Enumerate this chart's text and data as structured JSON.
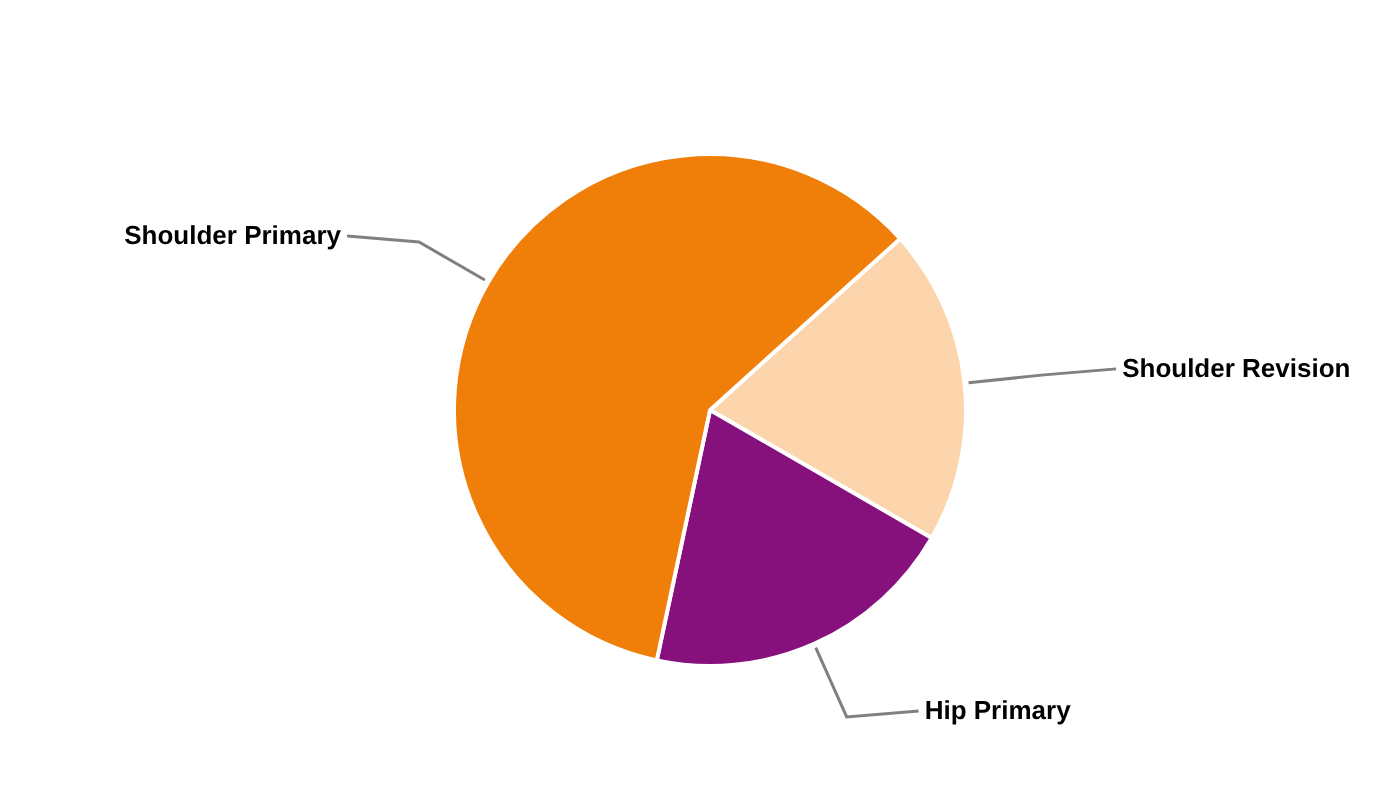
{
  "chart_data": {
    "type": "pie",
    "categories": [
      "Shoulder Revision",
      "Hip Primary",
      "Shoulder Primary"
    ],
    "values": [
      20,
      20,
      60
    ],
    "colors": [
      "#fcd5ac",
      "#86107c",
      "#f07f09"
    ],
    "legend": false
  }
}
